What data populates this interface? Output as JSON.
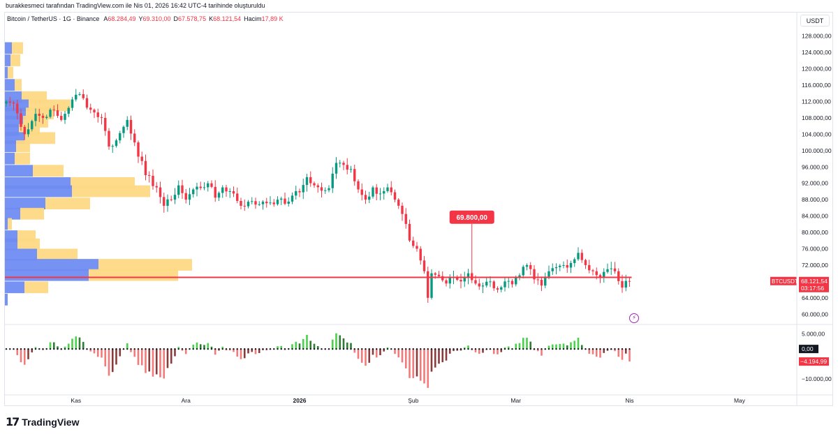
{
  "header": {
    "creator_line": "burakkesmeci tarafından TradingView.com ile Nis 01, 2026 16:42 UTC-4 tarihinde oluşturuldu"
  },
  "legend": {
    "symbol": "Bitcoin / TetherUS · 1G · Binance",
    "open_label": "A",
    "open": "68.284,49",
    "high_label": "Y",
    "high": "69.310,00",
    "low_label": "D",
    "low": "67.578,75",
    "close_label": "K",
    "close": "68.121,54",
    "volume_label": "Hacim",
    "volume": "17,89 K"
  },
  "currency_button": "USDT",
  "branding": {
    "logo_mark": "17",
    "name": "TradingView"
  },
  "colors": {
    "up": "#089981",
    "down": "#f23645",
    "vp_blue": "#6f8cf2",
    "vp_yellow": "#fdd985",
    "poc_line": "#f23645",
    "osc_up_strong": "#4bd14b",
    "osc_down_strong": "#f47a7a",
    "osc_down_dark": "#8a3b3b",
    "osc_up_dark": "#2e7d32"
  },
  "chart_data": {
    "type": "candlestick",
    "symbol_tag": "BTCUSDT",
    "last_price": "68.121,54",
    "countdown": "03:17:56",
    "callout": {
      "text": "69.800,00",
      "value": 69800
    },
    "poc_level": 69000,
    "y_axis": {
      "ylim": [
        58000,
        130000
      ],
      "ticks": [
        {
          "v": 128000,
          "label": "128.000,00"
        },
        {
          "v": 124000,
          "label": "124.000,00"
        },
        {
          "v": 120000,
          "label": "120.000,00"
        },
        {
          "v": 116000,
          "label": "116.000,00"
        },
        {
          "v": 112000,
          "label": "112.000,00"
        },
        {
          "v": 108000,
          "label": "108.000,00"
        },
        {
          "v": 104000,
          "label": "104.000,00"
        },
        {
          "v": 100000,
          "label": "100.000,00"
        },
        {
          "v": 96000,
          "label": "96.000,00"
        },
        {
          "v": 92000,
          "label": "92.000,00"
        },
        {
          "v": 88000,
          "label": "88.000,00"
        },
        {
          "v": 84000,
          "label": "84.000,00"
        },
        {
          "v": 80000,
          "label": "80.000,00"
        },
        {
          "v": 76000,
          "label": "76.000,00"
        },
        {
          "v": 72000,
          "label": "72.000,00"
        },
        {
          "v": 64000,
          "label": "64.000,00"
        },
        {
          "v": 60000,
          "label": "60.000,00"
        }
      ]
    },
    "x_axis": {
      "ticks": [
        {
          "label": "Kas",
          "index": 19
        },
        {
          "label": "Ara",
          "index": 49
        },
        {
          "label": "2026",
          "index": 80
        },
        {
          "label": "Şub",
          "index": 111
        },
        {
          "label": "Mar",
          "index": 139
        },
        {
          "label": "Nis",
          "index": 170
        },
        {
          "label": "May",
          "index": 200
        }
      ]
    },
    "anchors": [
      [
        0,
        112000
      ],
      [
        2,
        111500
      ],
      [
        5,
        104000
      ],
      [
        8,
        109000
      ],
      [
        10,
        108000
      ],
      [
        12,
        110000
      ],
      [
        15,
        107500
      ],
      [
        18,
        112500
      ],
      [
        20,
        113800
      ],
      [
        23,
        110000
      ],
      [
        26,
        108000
      ],
      [
        28,
        101000
      ],
      [
        30,
        102500
      ],
      [
        33,
        107500
      ],
      [
        35,
        102000
      ],
      [
        38,
        94000
      ],
      [
        41,
        91000
      ],
      [
        43,
        86500
      ],
      [
        45,
        88000
      ],
      [
        47,
        91500
      ],
      [
        49,
        88000
      ],
      [
        51,
        90500
      ],
      [
        55,
        92000
      ],
      [
        57,
        88500
      ],
      [
        59,
        91000
      ],
      [
        62,
        89500
      ],
      [
        64,
        86500
      ],
      [
        66,
        87500
      ],
      [
        68,
        86800
      ],
      [
        70,
        87500
      ],
      [
        72,
        87300
      ],
      [
        74,
        88000
      ],
      [
        76,
        87000
      ],
      [
        78,
        89000
      ],
      [
        80,
        89800
      ],
      [
        82,
        93500
      ],
      [
        84,
        91500
      ],
      [
        86,
        90200
      ],
      [
        88,
        90800
      ],
      [
        90,
        97000
      ],
      [
        92,
        96500
      ],
      [
        94,
        95500
      ],
      [
        96,
        90500
      ],
      [
        98,
        88000
      ],
      [
        100,
        91000
      ],
      [
        102,
        89500
      ],
      [
        104,
        91000
      ],
      [
        106,
        88000
      ],
      [
        108,
        84500
      ],
      [
        110,
        78000
      ],
      [
        112,
        76000
      ],
      [
        114,
        70500
      ],
      [
        115,
        64000
      ],
      [
        116,
        70000
      ],
      [
        118,
        69300
      ],
      [
        120,
        67500
      ],
      [
        122,
        69000
      ],
      [
        124,
        68000
      ],
      [
        126,
        70000
      ],
      [
        128,
        67500
      ],
      [
        130,
        67000
      ],
      [
        132,
        68000
      ],
      [
        134,
        66000
      ],
      [
        136,
        68000
      ],
      [
        138,
        67300
      ],
      [
        140,
        69500
      ],
      [
        142,
        72000
      ],
      [
        144,
        68500
      ],
      [
        146,
        67000
      ],
      [
        148,
        70500
      ],
      [
        150,
        71500
      ],
      [
        152,
        72000
      ],
      [
        154,
        72500
      ],
      [
        156,
        75000
      ],
      [
        158,
        72000
      ],
      [
        160,
        70500
      ],
      [
        162,
        69000
      ],
      [
        164,
        71000
      ],
      [
        166,
        70500
      ],
      [
        168,
        66500
      ],
      [
        170,
        68100
      ]
    ],
    "oscillator": {
      "ylim": [
        -13500,
        7500
      ],
      "ticks": [
        {
          "v": 5000,
          "label": "5.000,00"
        },
        {
          "v": -10000,
          "label": "−10.000,00"
        }
      ],
      "zero_label": "0,00",
      "last_label": "−4.194,99",
      "last_value": -4194.99
    },
    "volume_profile": [
      {
        "price": 125000,
        "blue": 10,
        "yellow": 16
      },
      {
        "price": 122000,
        "blue": 8,
        "yellow": 14
      },
      {
        "price": 119000,
        "blue": 4,
        "yellow": 8
      },
      {
        "price": 116000,
        "blue": 14,
        "yellow": 10
      },
      {
        "price": 113000,
        "blue": 24,
        "yellow": 36
      },
      {
        "price": 111000,
        "blue": 34,
        "yellow": 60
      },
      {
        "price": 109000,
        "blue": 30,
        "yellow": 40
      },
      {
        "price": 107000,
        "blue": 26,
        "yellow": 36
      },
      {
        "price": 105000,
        "blue": 20,
        "yellow": 30
      },
      {
        "price": 103000,
        "blue": 28,
        "yellow": 44
      },
      {
        "price": 101000,
        "blue": 16,
        "yellow": 20
      },
      {
        "price": 98000,
        "blue": 14,
        "yellow": 22
      },
      {
        "price": 95000,
        "blue": 40,
        "yellow": 44
      },
      {
        "price": 92000,
        "blue": 94,
        "yellow": 92
      },
      {
        "price": 90000,
        "blue": 96,
        "yellow": 112
      },
      {
        "price": 87000,
        "blue": 58,
        "yellow": 64
      },
      {
        "price": 84500,
        "blue": 22,
        "yellow": 34
      },
      {
        "price": 82000,
        "blue": 4,
        "yellow": 6
      },
      {
        "price": 79000,
        "blue": 18,
        "yellow": 26
      },
      {
        "price": 77000,
        "blue": 18,
        "yellow": 32
      },
      {
        "price": 74500,
        "blue": 46,
        "yellow": 58
      },
      {
        "price": 72000,
        "blue": 134,
        "yellow": 134
      },
      {
        "price": 69500,
        "blue": 120,
        "yellow": 128
      },
      {
        "price": 66500,
        "blue": 28,
        "yellow": 34
      },
      {
        "price": 63500,
        "blue": 4,
        "yellow": 0
      }
    ]
  }
}
